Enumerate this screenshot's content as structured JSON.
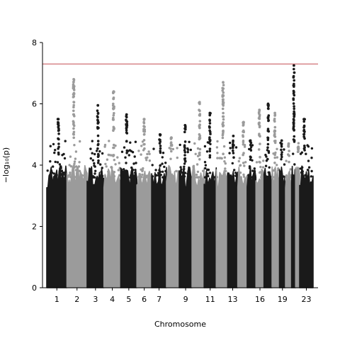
{
  "chart_data": {
    "type": "scatter",
    "subtype": "manhattan",
    "title": "",
    "xlabel": "Chromosome",
    "ylabel": "−log₁₀(p)",
    "ylim": [
      0,
      8
    ],
    "y_ticks": [
      0,
      2,
      4,
      6,
      8
    ],
    "grid": false,
    "significance_threshold": 7.3,
    "threshold_color": "#c44e52",
    "colors": {
      "dark": "#1a1a1a",
      "light": "#9b9b9b"
    },
    "x_tick_labels": [
      "1",
      "2",
      "3",
      "4",
      "5",
      "6",
      "7",
      "9",
      "11",
      "13",
      "16",
      "19",
      "23"
    ],
    "chromosomes": [
      {
        "chr": "1",
        "color": "dark",
        "peak": 5.5
      },
      {
        "chr": "2",
        "color": "light",
        "peak": 6.8
      },
      {
        "chr": "3",
        "color": "dark",
        "peak": 5.95
      },
      {
        "chr": "4",
        "color": "light",
        "peak": 6.4
      },
      {
        "chr": "5",
        "color": "dark",
        "peak": 5.65
      },
      {
        "chr": "6",
        "color": "light",
        "peak": 5.5
      },
      {
        "chr": "7",
        "color": "dark",
        "peak": 5.0
      },
      {
        "chr": "8",
        "color": "light",
        "peak": 4.9
      },
      {
        "chr": "9",
        "color": "dark",
        "peak": 5.3
      },
      {
        "chr": "10",
        "color": "light",
        "peak": 6.05
      },
      {
        "chr": "11",
        "color": "dark",
        "peak": 5.7
      },
      {
        "chr": "12",
        "color": "light",
        "peak": 6.7
      },
      {
        "chr": "13",
        "color": "dark",
        "peak": 4.95
      },
      {
        "chr": "14",
        "color": "light",
        "peak": 5.4
      },
      {
        "chr": "15",
        "color": "dark",
        "peak": 4.8
      },
      {
        "chr": "16",
        "color": "light",
        "peak": 5.8
      },
      {
        "chr": "17",
        "color": "dark",
        "peak": 6.0
      },
      {
        "chr": "18",
        "color": "light",
        "peak": 5.7
      },
      {
        "chr": "19",
        "color": "dark",
        "peak": 4.8
      },
      {
        "chr": "20",
        "color": "light",
        "peak": 4.7
      },
      {
        "chr": "21",
        "color": "dark",
        "peak": 7.25
      },
      {
        "chr": "22",
        "color": "light",
        "peak": 4.6
      },
      {
        "chr": "23",
        "color": "dark",
        "peak": 5.5
      }
    ]
  }
}
